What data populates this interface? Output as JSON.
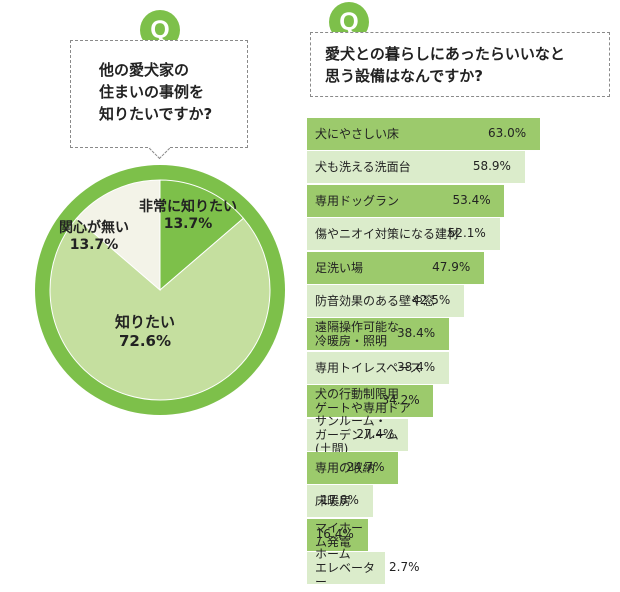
{
  "left_question": {
    "icon": "Q",
    "text": "他の愛犬家の\n住まいの事例を\n知りたいですか?"
  },
  "right_question": {
    "icon": "Q",
    "text": "愛犬との暮らしにあったらいいなと\n思う設備はなんですか?"
  },
  "chart_data": [
    {
      "type": "pie",
      "colors": [
        "#7dc04a",
        "#c5df9f",
        "#f3f3e8"
      ],
      "outer_ring_color": "#7dc04a",
      "slices": [
        {
          "label": "非常に知りたい",
          "value": 13.7,
          "display": "13.7%"
        },
        {
          "label": "知りたい",
          "value": 72.6,
          "display": "72.6%"
        },
        {
          "label": "関心が無い",
          "value": 13.7,
          "display": "13.7%"
        }
      ]
    },
    {
      "type": "bar",
      "orientation": "horizontal",
      "colors": [
        "#9cca6c",
        "#dbeccb"
      ],
      "xlim": [
        0,
        100
      ],
      "categories": [
        "犬にやさしい床",
        "犬も洗える洗面台",
        "専用ドッグラン",
        "傷やニオイ対策になる建材",
        "足洗い場",
        "防音効果のある壁や窓",
        "遠隔操作可能な\n冷暖房・照明",
        "専用トイレスペース",
        "犬の行動制限用\nゲートや専用ドア",
        "サンルーム・\nガーデンルーム(土間)",
        "専用の収納",
        "床暖房",
        "マイホーム発電",
        "ホーム\nエレベーター"
      ],
      "values": [
        63.0,
        58.9,
        53.4,
        52.1,
        47.9,
        42.5,
        38.4,
        38.4,
        34.2,
        27.4,
        24.7,
        17.8,
        16.4,
        2.7
      ],
      "value_labels": [
        "63.0%",
        "58.9%",
        "53.4%",
        "52.1%",
        "47.9%",
        "42.5%",
        "38.4%",
        "38.4%",
        "34.2%",
        "27.4%",
        "24.7%",
        "17.8%",
        "16.4%",
        "2.7%"
      ]
    }
  ]
}
